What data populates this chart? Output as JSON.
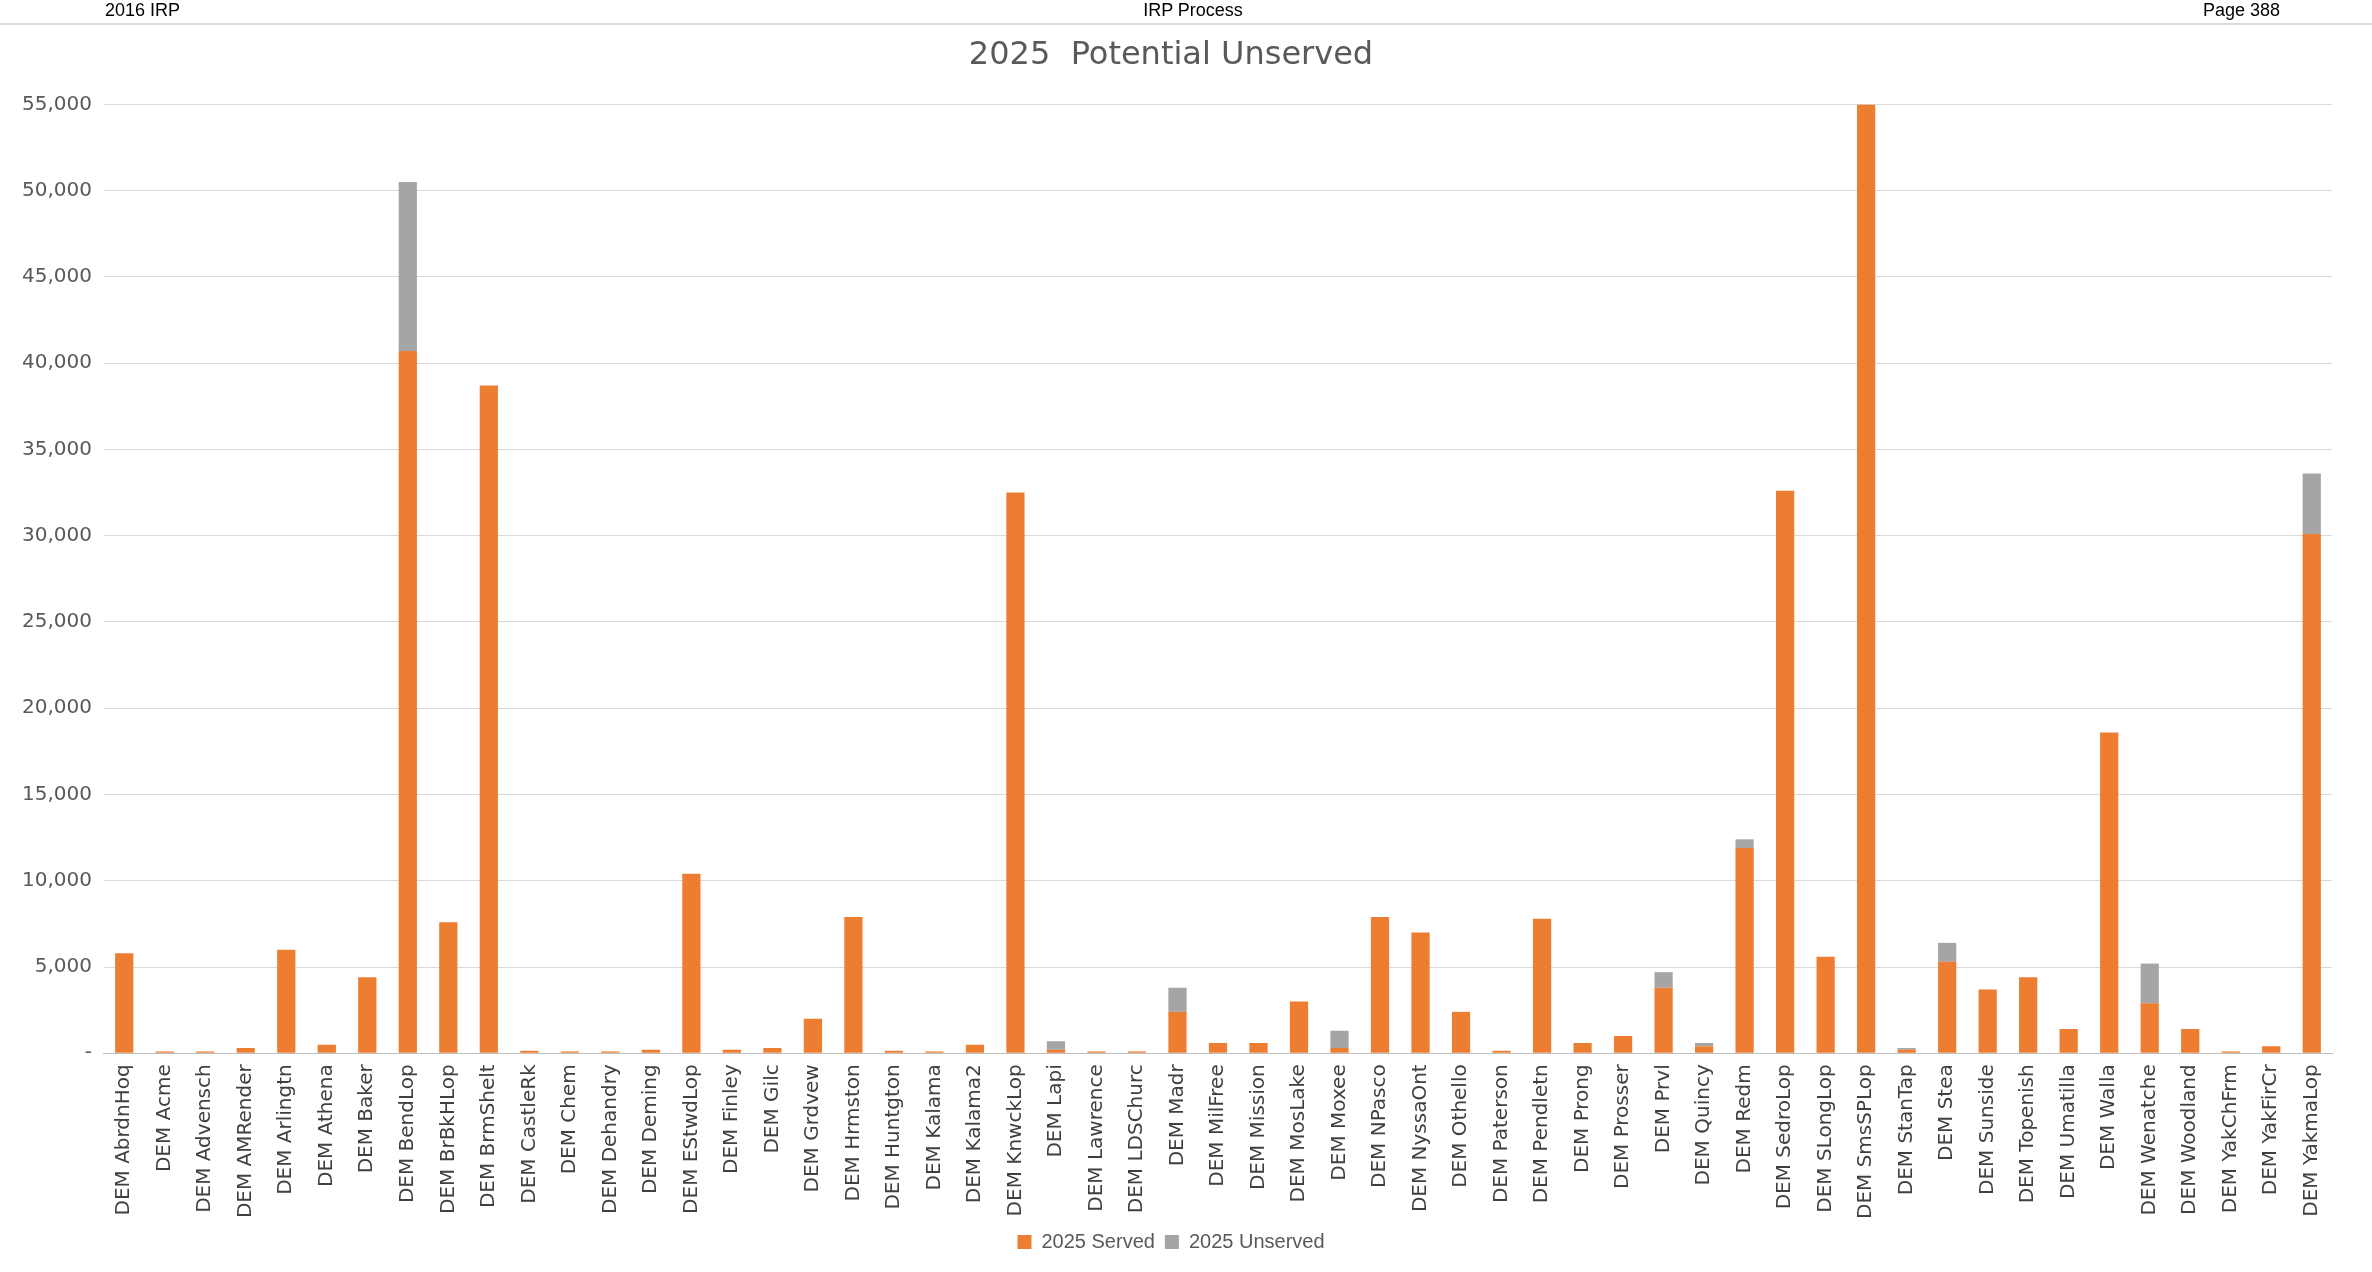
{
  "chart_data": {
    "type": "bar",
    "title": "2025  Potential Unserved",
    "annotations": [
      "2016 IRP",
      "IRP Process",
      "Page 388"
    ],
    "categories": [
      "DEM AbrdnHoq",
      "DEM Acme",
      "DEM Advensch",
      "DEM AMRender",
      "DEM Arlingtn",
      "DEM Athena",
      "DEM Baker",
      "DEM BendLop",
      "DEM BrBkHLop",
      "DEM BrmShelt",
      "DEM CastleRk",
      "DEM Chem",
      "DEM Dehandry",
      "DEM Deming",
      "DEM EStwdLop",
      "DEM Finley",
      "DEM Gilc",
      "DEM Grdvew",
      "DEM Hrmston",
      "DEM Huntgton",
      "DEM Kalama",
      "DEM Kalama2",
      "DEM KnwckLop",
      "DEM Lapi",
      "DEM Lawrence",
      "DEM LDSChurc",
      "DEM Madr",
      "DEM MilFree",
      "DEM Mission",
      "DEM MosLake",
      "DEM Moxee",
      "DEM NPasco",
      "DEM NyssaOnt",
      "DEM Othello",
      "DEM Paterson",
      "DEM Pendletn",
      "DEM Prong",
      "DEM Prosser",
      "DEM Prvl",
      "DEM Quincy",
      "DEM Redm",
      "DEM SedroLop",
      "DEM SLongLop",
      "DEM SmsSPLop",
      "DEM StanTap",
      "DEM Stea",
      "DEM Sunside",
      "DEM Topenish",
      "DEM Umatilla",
      "DEM Walla",
      "DEM Wenatche",
      "DEM Woodland",
      "DEM YakChFrm",
      "DEM YakFirCr",
      "DEM YakmaLop"
    ],
    "stacked": true,
    "series": [
      {
        "name": "2025 Served",
        "color": "#ed7d31",
        "values": [
          5800,
          100,
          100,
          300,
          6000,
          500,
          4400,
          40700,
          7600,
          38700,
          150,
          100,
          100,
          200,
          10400,
          200,
          300,
          2000,
          7900,
          150,
          100,
          500,
          32500,
          200,
          100,
          100,
          2400,
          600,
          600,
          3000,
          300,
          7900,
          7000,
          2400,
          150,
          7800,
          600,
          1000,
          3800,
          400,
          11900,
          32600,
          5600,
          55000,
          200,
          5300,
          3700,
          4400,
          1400,
          18600,
          2900,
          1400,
          100,
          400,
          30100
        ]
      },
      {
        "name": "2025 Unserved",
        "color": "#a5a5a5",
        "values": [
          0,
          0,
          0,
          0,
          0,
          0,
          0,
          9800,
          0,
          0,
          0,
          0,
          0,
          0,
          0,
          0,
          0,
          0,
          0,
          0,
          0,
          0,
          0,
          500,
          0,
          0,
          1400,
          0,
          0,
          0,
          1000,
          0,
          0,
          0,
          0,
          0,
          0,
          0,
          900,
          200,
          500,
          0,
          0,
          0,
          100,
          1100,
          0,
          0,
          0,
          0,
          2300,
          0,
          0,
          0,
          3500
        ]
      }
    ],
    "ylim": [
      0,
      55000
    ],
    "yticks": [
      {
        "value": 0,
        "label": "-"
      },
      {
        "value": 5000,
        "label": "5,000"
      },
      {
        "value": 10000,
        "label": "10,000"
      },
      {
        "value": 15000,
        "label": "15,000"
      },
      {
        "value": 20000,
        "label": "20,000"
      },
      {
        "value": 25000,
        "label": "25,000"
      },
      {
        "value": 30000,
        "label": "30,000"
      },
      {
        "value": 35000,
        "label": "35,000"
      },
      {
        "value": 40000,
        "label": "40,000"
      },
      {
        "value": 45000,
        "label": "45,000"
      },
      {
        "value": 50000,
        "label": "50,000"
      },
      {
        "value": 55000,
        "label": "55,000"
      }
    ],
    "grid": "y",
    "legend": "bottom"
  }
}
